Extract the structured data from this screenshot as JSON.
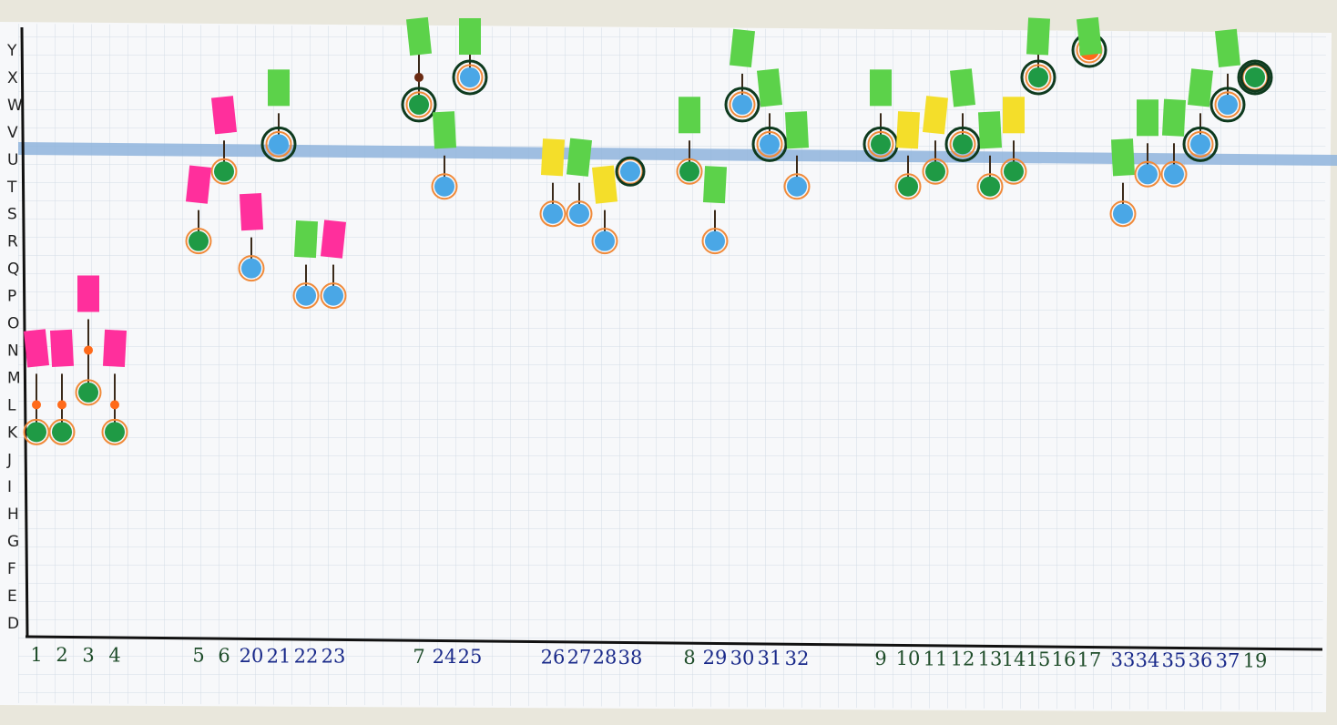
{
  "y_axis_labels": [
    "D",
    "E",
    "F",
    "G",
    "H",
    "I",
    "J",
    "K",
    "L",
    "M",
    "N",
    "O",
    "P",
    "Q",
    "R",
    "S",
    "T",
    "U",
    "V",
    "W",
    "X",
    "Y"
  ],
  "x_axis_labels": [
    {
      "text": "1",
      "color": "#1f4d2a"
    },
    {
      "text": "2",
      "color": "#1f4d2a"
    },
    {
      "text": "3",
      "color": "#1f4d2a"
    },
    {
      "text": "4",
      "color": "#1f4d2a"
    },
    {
      "text": "5",
      "color": "#1f4d2a"
    },
    {
      "text": "6",
      "color": "#1f4d2a"
    },
    {
      "text": "20",
      "color": "#1a2a8a"
    },
    {
      "text": "21",
      "color": "#1a2a8a"
    },
    {
      "text": "22",
      "color": "#1a2a8a"
    },
    {
      "text": "23",
      "color": "#1a2a8a"
    },
    {
      "text": "7",
      "color": "#1f4d2a"
    },
    {
      "text": "24",
      "color": "#1a2a8a"
    },
    {
      "text": "25",
      "color": "#1a2a8a"
    },
    {
      "text": "26",
      "color": "#1a2a8a"
    },
    {
      "text": "27",
      "color": "#1a2a8a"
    },
    {
      "text": "28",
      "color": "#1a2a8a"
    },
    {
      "text": "38",
      "color": "#1a2a8a"
    },
    {
      "text": "8",
      "color": "#1f4d2a"
    },
    {
      "text": "29",
      "color": "#1a2a8a"
    },
    {
      "text": "30",
      "color": "#1a2a8a"
    },
    {
      "text": "31",
      "color": "#1a2a8a"
    },
    {
      "text": "32",
      "color": "#1a2a8a"
    },
    {
      "text": "9",
      "color": "#1f4d2a"
    },
    {
      "text": "10",
      "color": "#1f4d2a"
    },
    {
      "text": "11",
      "color": "#1f4d2a"
    },
    {
      "text": "12",
      "color": "#1f4d2a"
    },
    {
      "text": "13",
      "color": "#1f4d2a"
    },
    {
      "text": "14",
      "color": "#1f4d2a"
    },
    {
      "text": "15",
      "color": "#1f4d2a"
    },
    {
      "text": "16",
      "color": "#1f4d2a"
    },
    {
      "text": "17",
      "color": "#1f4d2a"
    },
    {
      "text": "33",
      "color": "#1a2a8a"
    },
    {
      "text": "34",
      "color": "#1a2a8a"
    },
    {
      "text": "35",
      "color": "#1a2a8a"
    },
    {
      "text": "36",
      "color": "#1a2a8a"
    },
    {
      "text": "37",
      "color": "#1a2a8a"
    },
    {
      "text": "19",
      "color": "#1f4d2a"
    }
  ],
  "reference_band_level": "U",
  "colors": {
    "paper": "#f7f8fa",
    "grid": "#cfd9e3",
    "band": "#8fb4dc",
    "note_pink": "#ff2f9c",
    "note_green": "#5cd24a",
    "note_yellow": "#f4de2a",
    "dot_green": "#1f9a45",
    "dot_blue": "#4aa7e6",
    "dot_orange": "#ff6a1a",
    "ink_dark": "#0e3a1e"
  },
  "markers": [
    {
      "student": "1",
      "note": "pink",
      "dots": [
        {
          "color": "green",
          "level": "K"
        },
        {
          "color": "orange",
          "level": "L",
          "small": true
        }
      ]
    },
    {
      "student": "2",
      "note": "pink",
      "dots": [
        {
          "color": "green",
          "level": "K"
        },
        {
          "color": "orange",
          "level": "L",
          "small": true
        }
      ]
    },
    {
      "student": "3",
      "note": "pink",
      "dots": [
        {
          "color": "green",
          "level": "L+"
        },
        {
          "color": "orange",
          "level": "N",
          "small": true
        }
      ]
    },
    {
      "student": "4",
      "note": "pink",
      "dots": [
        {
          "color": "green",
          "level": "K"
        },
        {
          "color": "orange",
          "level": "L",
          "small": true
        }
      ]
    },
    {
      "student": "5",
      "note": "pink",
      "dots": [
        {
          "color": "green",
          "level": "R"
        }
      ]
    },
    {
      "student": "6",
      "note": "pink",
      "dots": [
        {
          "color": "green",
          "level": "U-"
        }
      ]
    },
    {
      "student": "20",
      "note": "pink",
      "dots": [
        {
          "color": "blue",
          "level": "Q"
        }
      ]
    },
    {
      "student": "21",
      "note": "green",
      "dots": [
        {
          "color": "blue",
          "level": "V-"
        }
      ]
    },
    {
      "student": "22",
      "note": "green",
      "dots": [
        {
          "color": "blue",
          "level": "P"
        }
      ]
    },
    {
      "student": "23",
      "note": "pink",
      "dots": [
        {
          "color": "blue",
          "level": "P"
        }
      ]
    },
    {
      "student": "7",
      "note": "green",
      "dots": [
        {
          "color": "green",
          "level": "W"
        },
        {
          "color": "brown",
          "level": "X",
          "small": true
        }
      ]
    },
    {
      "student": "24",
      "note": "green",
      "dots": [
        {
          "color": "blue",
          "level": "T"
        }
      ]
    },
    {
      "student": "25",
      "note": "green",
      "dots": [
        {
          "color": "blue",
          "level": "X"
        }
      ]
    },
    {
      "student": "26",
      "note": "yellow",
      "dots": [
        {
          "color": "blue",
          "level": "S"
        }
      ]
    },
    {
      "student": "27",
      "note": "green",
      "dots": [
        {
          "color": "blue",
          "level": "S"
        }
      ]
    },
    {
      "student": "28",
      "note": "yellow",
      "dots": [
        {
          "color": "blue",
          "level": "R"
        }
      ]
    },
    {
      "student": "38",
      "note": "",
      "dots": [
        {
          "color": "blue",
          "level": "U-"
        }
      ]
    },
    {
      "student": "8",
      "note": "green",
      "dots": [
        {
          "color": "green",
          "level": "U-"
        }
      ]
    },
    {
      "student": "29",
      "note": "green",
      "dots": [
        {
          "color": "blue",
          "level": "R"
        }
      ]
    },
    {
      "student": "30",
      "note": "green",
      "dots": [
        {
          "color": "blue",
          "level": "W"
        }
      ]
    },
    {
      "student": "31",
      "note": "green",
      "dots": [
        {
          "color": "blue",
          "level": "V-"
        }
      ]
    },
    {
      "student": "32",
      "note": "green",
      "dots": [
        {
          "color": "blue",
          "level": "T"
        }
      ]
    },
    {
      "student": "9",
      "note": "green",
      "dots": [
        {
          "color": "green",
          "level": "V-"
        }
      ]
    },
    {
      "student": "10",
      "note": "yellow",
      "dots": [
        {
          "color": "green",
          "level": "T"
        }
      ]
    },
    {
      "student": "11",
      "note": "yellow",
      "dots": [
        {
          "color": "green",
          "level": "U-"
        }
      ]
    },
    {
      "student": "12",
      "note": "green",
      "dots": [
        {
          "color": "green",
          "level": "V-"
        }
      ]
    },
    {
      "student": "13",
      "note": "green",
      "dots": [
        {
          "color": "green",
          "level": "T"
        }
      ]
    },
    {
      "student": "14",
      "note": "yellow",
      "dots": [
        {
          "color": "green",
          "level": "U-"
        }
      ]
    },
    {
      "student": "15",
      "note": "green",
      "dots": [
        {
          "color": "green",
          "level": "X"
        }
      ]
    },
    {
      "student": "16",
      "note": "",
      "dots": []
    },
    {
      "student": "17",
      "note": "green",
      "dots": [
        {
          "color": "orange",
          "level": "Y"
        }
      ]
    },
    {
      "student": "33",
      "note": "green",
      "dots": [
        {
          "color": "blue",
          "level": "S"
        }
      ]
    },
    {
      "student": "34",
      "note": "green",
      "dots": [
        {
          "color": "blue",
          "level": "T+"
        }
      ]
    },
    {
      "student": "35",
      "note": "green",
      "dots": [
        {
          "color": "blue",
          "level": "T+"
        }
      ]
    },
    {
      "student": "36",
      "note": "green",
      "dots": [
        {
          "color": "blue",
          "level": "V-"
        }
      ]
    },
    {
      "student": "37",
      "note": "green",
      "dots": [
        {
          "color": "blue",
          "level": "W"
        }
      ]
    },
    {
      "student": "19",
      "note": "",
      "dots": [
        {
          "color": "green",
          "level": "X"
        }
      ]
    }
  ]
}
